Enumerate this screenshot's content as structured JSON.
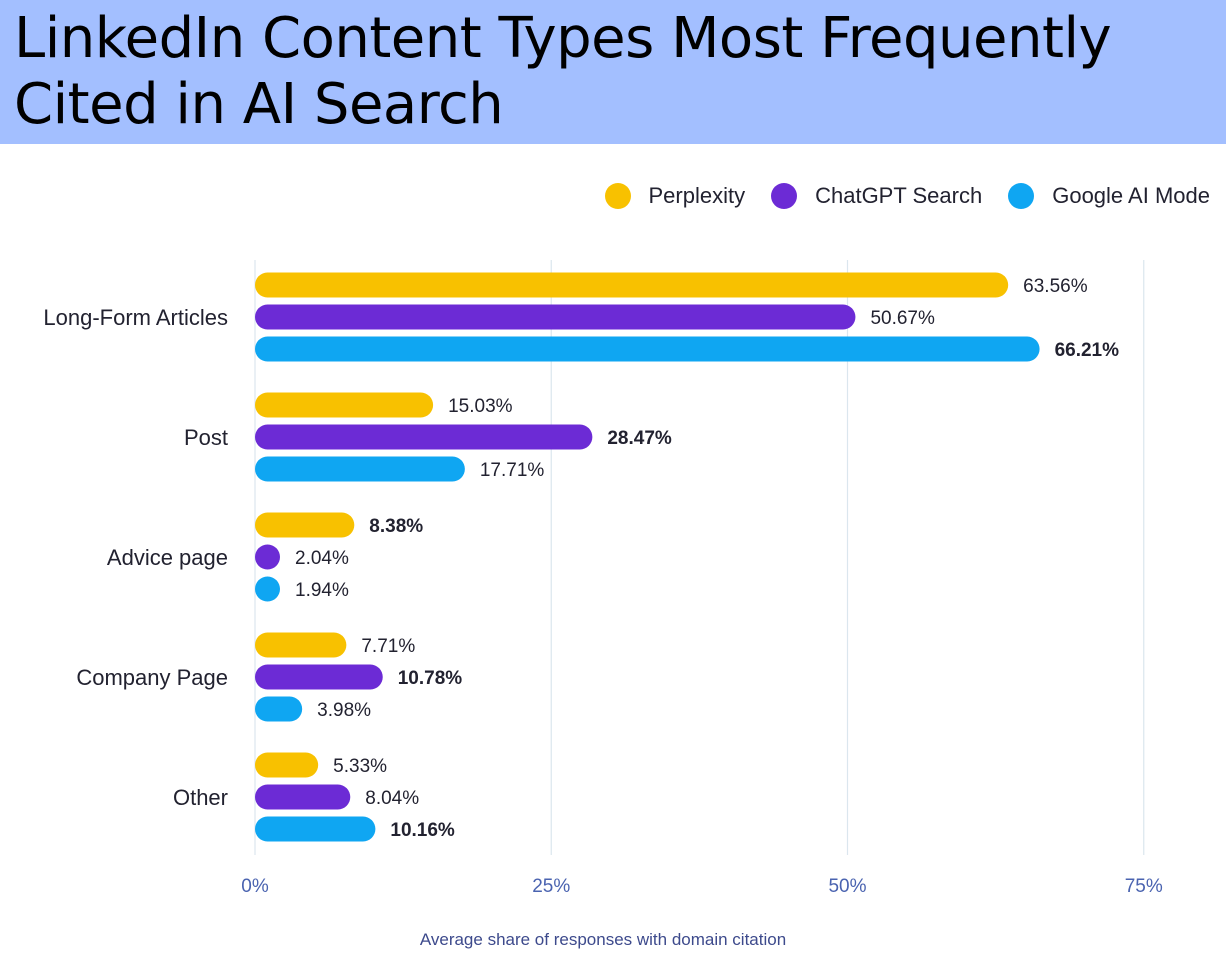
{
  "header": {
    "title": "LinkedIn Content Types Most Frequently Cited in AI Search"
  },
  "colors": {
    "header_bg": "#a3bfff",
    "gridline": "#dbe6ee",
    "axis_text": "#4a63b0"
  },
  "chart_data": {
    "type": "bar",
    "orientation": "horizontal",
    "title": "LinkedIn Content Types Most Frequently Cited in AI Search",
    "xlabel": "Average share of responses with domain citation",
    "ylabel": "",
    "categories": [
      "Long-Form Articles",
      "Post",
      "Advice page",
      "Company Page",
      "Other"
    ],
    "series": [
      {
        "name": "Perplexity",
        "color": "#f8c100",
        "values": [
          63.56,
          15.03,
          8.38,
          7.71,
          5.33
        ],
        "labels": [
          "63.56%",
          "15.03%",
          "8.38%",
          "7.71%",
          "5.33%"
        ]
      },
      {
        "name": "ChatGPT Search",
        "color": "#6c2bd5",
        "values": [
          50.67,
          28.47,
          2.04,
          10.78,
          8.04
        ],
        "labels": [
          "50.67%",
          "28.47%",
          "2.04%",
          "10.78%",
          "8.04%"
        ]
      },
      {
        "name": "Google AI Mode",
        "color": "#0fa6f2",
        "values": [
          66.21,
          17.71,
          1.94,
          3.98,
          10.16
        ],
        "labels": [
          "66.21%",
          "17.71%",
          "1.94%",
          "3.98%",
          "10.16%"
        ]
      }
    ],
    "xlim": [
      0,
      75
    ],
    "xticks": [
      0,
      25,
      50,
      75
    ],
    "xtick_labels": [
      "0%",
      "25%",
      "50%",
      "75%"
    ],
    "grid": true,
    "legend_position": "top-right"
  }
}
